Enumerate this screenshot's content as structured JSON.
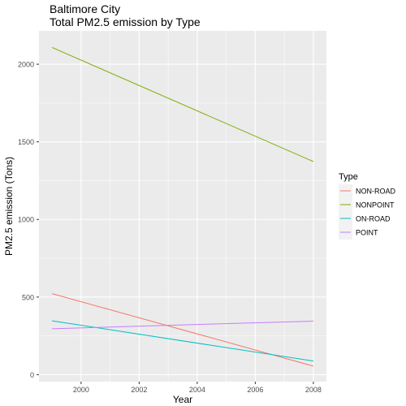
{
  "chart_data": {
    "type": "line",
    "title": "Baltimore City",
    "subtitle": "Total PM2.5 emission by Type",
    "xlabel": "Year",
    "ylabel": "PM2.5 emission (Tons)",
    "xlim": [
      1998.55,
      2008.45
    ],
    "ylim": [
      -45,
      2215
    ],
    "x_ticks": [
      2000,
      2002,
      2004,
      2006,
      2008
    ],
    "y_ticks": [
      0,
      500,
      1000,
      1500,
      2000
    ],
    "grid": true,
    "legend_title": "Type",
    "legend_position": "right",
    "series": [
      {
        "name": "NON-ROAD",
        "color": "#F8766D",
        "x": [
          1999,
          2008
        ],
        "y": [
          522,
          55
        ]
      },
      {
        "name": "NONPOINT",
        "color": "#7CAE00",
        "x": [
          1999,
          2008
        ],
        "y": [
          2108,
          1373
        ]
      },
      {
        "name": "ON-ROAD",
        "color": "#00BFC4",
        "x": [
          1999,
          2008
        ],
        "y": [
          347,
          88
        ]
      },
      {
        "name": "POINT",
        "color": "#C77CFF",
        "x": [
          1999,
          2008
        ],
        "y": [
          296,
          345
        ]
      }
    ]
  }
}
